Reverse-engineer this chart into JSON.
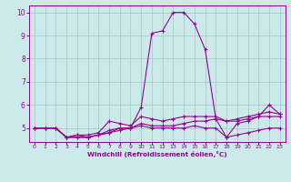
{
  "bg_color": "#cceaea",
  "grid_color": "#aacccc",
  "line_color": "#990099",
  "xlabel": "Windchill (Refroidissement éolien,°C)",
  "xlim": [
    -0.5,
    23.5
  ],
  "ylim": [
    4.4,
    10.3
  ],
  "xticks": [
    0,
    1,
    2,
    3,
    4,
    5,
    6,
    7,
    8,
    9,
    10,
    11,
    12,
    13,
    14,
    15,
    16,
    17,
    18,
    19,
    20,
    21,
    22,
    23
  ],
  "yticks": [
    5,
    6,
    7,
    8,
    9,
    10
  ],
  "series": [
    {
      "x": [
        0,
        1,
        2,
        3,
        4,
        5,
        6,
        7,
        8,
        9,
        10,
        11,
        12,
        13,
        14,
        15,
        16,
        17,
        18,
        19,
        20,
        21,
        22,
        23
      ],
      "y": [
        5.0,
        5.0,
        5.0,
        4.6,
        4.7,
        4.6,
        4.7,
        4.8,
        5.0,
        5.0,
        5.9,
        9.1,
        9.2,
        10.0,
        10.0,
        9.5,
        8.4,
        5.4,
        4.6,
        5.2,
        5.3,
        5.5,
        6.0,
        5.6
      ]
    },
    {
      "x": [
        0,
        1,
        2,
        3,
        4,
        5,
        6,
        7,
        8,
        9,
        10,
        11,
        12,
        13,
        14,
        15,
        16,
        17,
        18,
        19,
        20,
        21,
        22,
        23
      ],
      "y": [
        5.0,
        5.0,
        5.0,
        4.6,
        4.7,
        4.7,
        4.8,
        5.3,
        5.2,
        5.1,
        5.5,
        5.4,
        5.3,
        5.4,
        5.5,
        5.5,
        5.5,
        5.5,
        5.3,
        5.4,
        5.5,
        5.6,
        5.7,
        5.6
      ]
    },
    {
      "x": [
        0,
        1,
        2,
        3,
        4,
        5,
        6,
        7,
        8,
        9,
        10,
        11,
        12,
        13,
        14,
        15,
        16,
        17,
        18,
        19,
        20,
        21,
        22,
        23
      ],
      "y": [
        5.0,
        5.0,
        5.0,
        4.6,
        4.6,
        4.6,
        4.7,
        4.9,
        5.0,
        5.0,
        5.2,
        5.1,
        5.1,
        5.1,
        5.2,
        5.3,
        5.3,
        5.4,
        5.3,
        5.3,
        5.4,
        5.5,
        5.5,
        5.5
      ]
    },
    {
      "x": [
        0,
        1,
        2,
        3,
        4,
        5,
        6,
        7,
        8,
        9,
        10,
        11,
        12,
        13,
        14,
        15,
        16,
        17,
        18,
        19,
        20,
        21,
        22,
        23
      ],
      "y": [
        5.0,
        5.0,
        5.0,
        4.6,
        4.6,
        4.6,
        4.7,
        4.8,
        4.9,
        5.0,
        5.1,
        5.0,
        5.0,
        5.0,
        5.0,
        5.1,
        5.0,
        5.0,
        4.6,
        4.7,
        4.8,
        4.9,
        5.0,
        5.0
      ]
    }
  ]
}
